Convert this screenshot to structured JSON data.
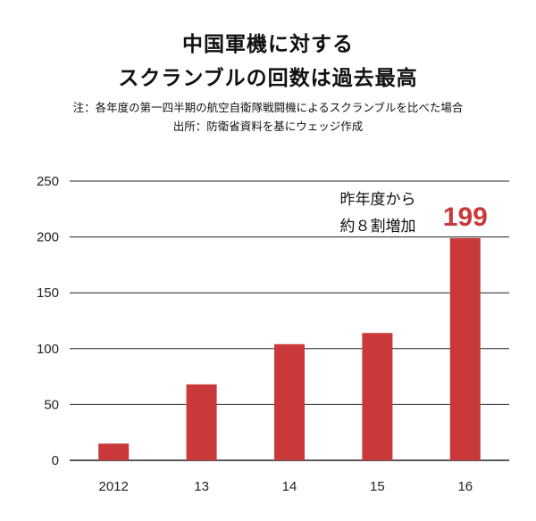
{
  "title": {
    "line1": "中国軍機に対する",
    "line2": "スクランブルの回数は過去最高"
  },
  "notes": {
    "note": "注：各年度の第一四半期の航空自衛隊戦闘機によるスクランブルを比べた場合",
    "source": "出所：防衛省資料を基にウェッジ作成"
  },
  "colors": {
    "bar": "#c9393a",
    "highlight_label": "#c9393a",
    "grid": "#222222"
  },
  "chart_data": {
    "type": "bar",
    "categories": [
      "2012",
      "13",
      "14",
      "15",
      "16"
    ],
    "values": [
      15,
      68,
      104,
      114,
      199
    ],
    "ylim": [
      0,
      250
    ],
    "yticks": [
      0,
      50,
      100,
      150,
      200,
      250
    ],
    "grid": true,
    "annotation": {
      "line1": "昨年度から",
      "line2": "約８割増加"
    },
    "data_labels": [
      {
        "category": "16",
        "text": "199"
      }
    ]
  }
}
